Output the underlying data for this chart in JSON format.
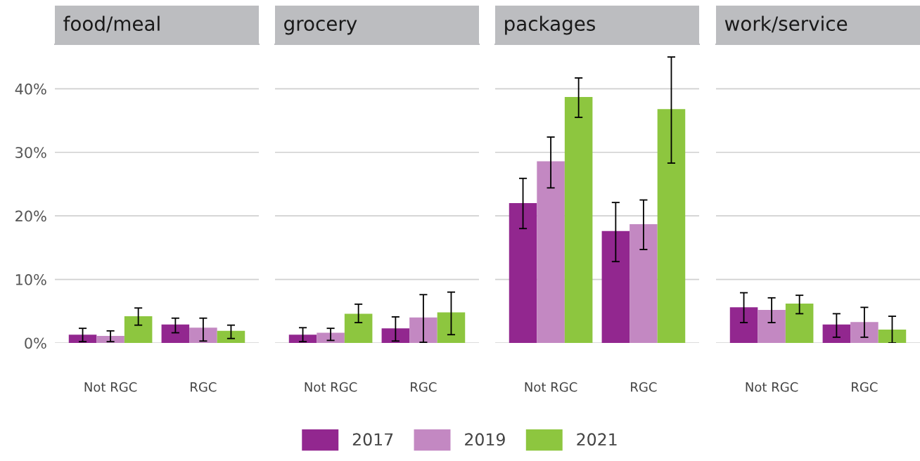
{
  "chart_data": [
    {
      "type": "bar",
      "title": "food/meal",
      "categories": [
        "Not RGC",
        "RGC"
      ],
      "ylim": [
        0,
        47
      ],
      "yticks": [
        {
          "value": 0,
          "label": "0%"
        },
        {
          "value": 10,
          "label": "10%"
        },
        {
          "value": 20,
          "label": "20%"
        },
        {
          "value": 30,
          "label": "30%"
        },
        {
          "value": 40,
          "label": "40%"
        }
      ],
      "grid": "y",
      "legend": "bottom",
      "series": [
        {
          "name": "2017",
          "color": "#92278f",
          "values": [
            1.3,
            2.9
          ],
          "errors": [
            [
              0.2,
              2.3
            ],
            [
              1.6,
              3.9
            ]
          ]
        },
        {
          "name": "2019",
          "color": "#c388c2",
          "values": [
            1.1,
            2.4
          ],
          "errors": [
            [
              0.2,
              1.9
            ],
            [
              0.3,
              3.9
            ]
          ]
        },
        {
          "name": "2021",
          "color": "#8dc63f",
          "values": [
            4.2,
            1.9
          ],
          "errors": [
            [
              2.8,
              5.5
            ],
            [
              0.7,
              2.8
            ]
          ]
        }
      ]
    },
    {
      "type": "bar",
      "title": "grocery",
      "categories": [
        "Not RGC",
        "RGC"
      ],
      "ylim": [
        0,
        47
      ],
      "yticks": [
        {
          "value": 0,
          "label": null
        },
        {
          "value": 10,
          "label": null
        },
        {
          "value": 20,
          "label": null
        },
        {
          "value": 30,
          "label": null
        },
        {
          "value": 40,
          "label": null
        }
      ],
      "grid": "y",
      "tick_labels": "x",
      "series": [
        {
          "name": "2017",
          "color": "#92278f",
          "values": [
            1.3,
            2.3
          ],
          "errors": [
            [
              0.2,
              2.4
            ],
            [
              0.3,
              4.1
            ]
          ]
        },
        {
          "name": "2019",
          "color": "#c388c2",
          "values": [
            1.6,
            4.0
          ],
          "errors": [
            [
              0.4,
              2.3
            ],
            [
              0.1,
              7.6
            ]
          ]
        },
        {
          "name": "2021",
          "color": "#8dc63f",
          "values": [
            4.6,
            4.8
          ],
          "errors": [
            [
              3.2,
              6.1
            ],
            [
              1.3,
              8.0
            ]
          ]
        }
      ]
    },
    {
      "type": "bar",
      "title": "packages",
      "categories": [
        "Not RGC",
        "RGC"
      ],
      "ylim": [
        0,
        47
      ],
      "yticks": [
        {
          "value": 0,
          "label": null
        },
        {
          "value": 10,
          "label": null
        },
        {
          "value": 20,
          "label": null
        },
        {
          "value": 30,
          "label": null
        },
        {
          "value": 40,
          "label": null
        }
      ],
      "grid": "y",
      "tick_labels": "x",
      "series": [
        {
          "name": "2017",
          "color": "#92278f",
          "values": [
            22.0,
            17.6
          ],
          "errors": [
            [
              18.0,
              25.9
            ],
            [
              12.8,
              22.1
            ]
          ]
        },
        {
          "name": "2019",
          "color": "#c388c2",
          "values": [
            28.6,
            18.7
          ],
          "errors": [
            [
              24.4,
              32.4
            ],
            [
              14.7,
              22.5
            ]
          ]
        },
        {
          "name": "2021",
          "color": "#8dc63f",
          "values": [
            38.7,
            36.8
          ],
          "errors": [
            [
              35.5,
              41.7
            ],
            [
              28.3,
              45.0
            ]
          ]
        }
      ]
    },
    {
      "type": "bar",
      "title": "work/service",
      "categories": [
        "Not RGC",
        "RGC"
      ],
      "ylim": [
        0,
        47
      ],
      "yticks": [
        {
          "value": 0,
          "label": null
        },
        {
          "value": 10,
          "label": null
        },
        {
          "value": 20,
          "label": null
        },
        {
          "value": 30,
          "label": null
        },
        {
          "value": 40,
          "label": null
        }
      ],
      "grid": "y",
      "tick_labels": "x",
      "series": [
        {
          "name": "2017",
          "color": "#92278f",
          "values": [
            5.6,
            2.9
          ],
          "errors": [
            [
              3.2,
              7.9
            ],
            [
              0.9,
              4.6
            ]
          ]
        },
        {
          "name": "2019",
          "color": "#c388c2",
          "values": [
            5.2,
            3.3
          ],
          "errors": [
            [
              3.2,
              7.1
            ],
            [
              0.9,
              5.6
            ]
          ]
        },
        {
          "name": "2021",
          "color": "#8dc63f",
          "values": [
            6.2,
            2.1
          ],
          "errors": [
            [
              4.6,
              7.5
            ],
            [
              0.0,
              4.2
            ]
          ]
        }
      ]
    }
  ]
}
